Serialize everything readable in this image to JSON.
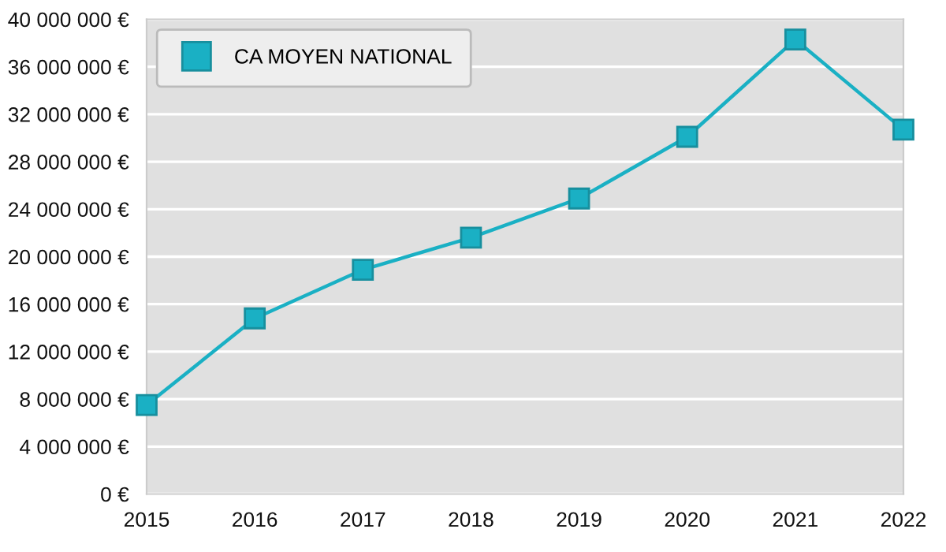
{
  "chart_data": {
    "type": "line",
    "x": [
      2015,
      2016,
      2017,
      2018,
      2019,
      2020,
      2021,
      2022
    ],
    "series": [
      {
        "name": "CA MOYEN NATIONAL",
        "color": "#1ab0c4",
        "values": [
          7500000,
          14800000,
          18900000,
          21600000,
          24900000,
          30100000,
          38300000,
          30700000
        ]
      }
    ],
    "xlim": [
      2015,
      2022
    ],
    "xticks": [
      2015,
      2016,
      2017,
      2018,
      2019,
      2020,
      2021,
      2022
    ],
    "ylim": [
      0,
      40000000
    ],
    "yticks": [
      {
        "value": 0,
        "label": "0 €"
      },
      {
        "value": 4000000,
        "label": "4 000 000 €"
      },
      {
        "value": 8000000,
        "label": "8 000 000 €"
      },
      {
        "value": 12000000,
        "label": "12 000 000 €"
      },
      {
        "value": 16000000,
        "label": "16 000 000 €"
      },
      {
        "value": 20000000,
        "label": "20 000 000 €"
      },
      {
        "value": 24000000,
        "label": "24 000 000 €"
      },
      {
        "value": 28000000,
        "label": "28 000 000 €"
      },
      {
        "value": 32000000,
        "label": "32 000 000 €"
      },
      {
        "value": 36000000,
        "label": "36 000 000 €"
      },
      {
        "value": 40000000,
        "label": "40 000 000 €"
      }
    ],
    "grid": "y",
    "legend": "top left",
    "marker": "square",
    "line_style": "solid"
  }
}
